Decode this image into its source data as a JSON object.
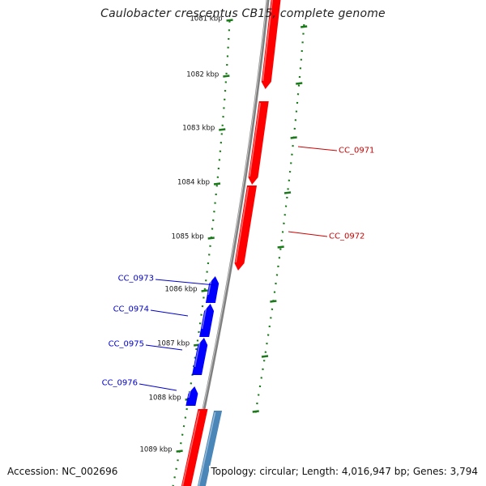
{
  "title": "Caulobacter crescentus CB15, complete genome",
  "footer": {
    "accession": "Accession: NC_002696",
    "topology": "Topology: circular; Length: 4,016,947 bp; Genes: 3,794"
  },
  "colors": {
    "forward_gene": "#ff0000",
    "reverse_gene": "#0000ff",
    "rna_gene": "#4a86b8",
    "backbone": "#808080",
    "tick": "#1a7a1a",
    "forward_label": "#cc0000",
    "reverse_label": "#0000cc"
  },
  "ruler": {
    "ticks": [
      {
        "label": "1081 kbp"
      },
      {
        "label": "1082 kbp"
      },
      {
        "label": "1083 kbp"
      },
      {
        "label": "1084 kbp"
      },
      {
        "label": "1085 kbp"
      },
      {
        "label": "1086 kbp"
      },
      {
        "label": "1087 kbp"
      },
      {
        "label": "1088 kbp"
      },
      {
        "label": "1089 kbp"
      }
    ]
  },
  "gene_labels": [
    {
      "text": "CC_0971",
      "strand": "forward"
    },
    {
      "text": "CC_0972",
      "strand": "forward"
    },
    {
      "text": "CC_0973",
      "strand": "reverse"
    },
    {
      "text": "CC_0974",
      "strand": "reverse"
    },
    {
      "text": "CC_0975",
      "strand": "reverse"
    },
    {
      "text": "CC_0976",
      "strand": "reverse"
    }
  ]
}
